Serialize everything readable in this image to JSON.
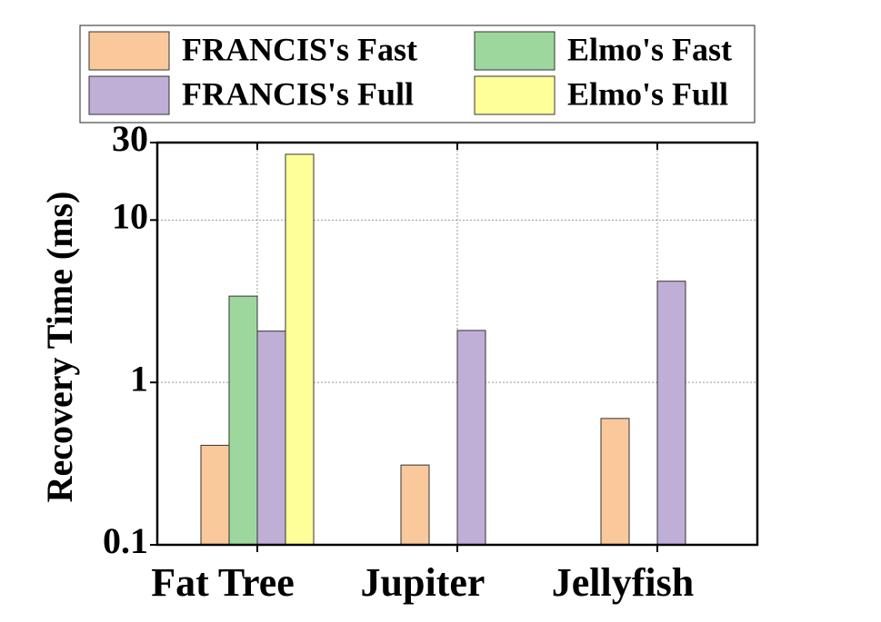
{
  "chart_data": {
    "type": "bar",
    "categories": [
      "Fat Tree",
      "Jupiter",
      "Jellyfish"
    ],
    "y_label": "Recovery Time (ms)",
    "log_scale": true,
    "grid": true,
    "legend_position": "top",
    "series": [
      {
        "name": "FRANCIS's Fast",
        "color": "#f9c89b",
        "values": [
          0.41,
          0.31,
          0.6
        ]
      },
      {
        "name": "Elmo's Fast",
        "color": "#9ed79e",
        "values": [
          3.4,
          null,
          null
        ]
      },
      {
        "name": "FRANCIS's Full",
        "color": "#bfaed6",
        "values": [
          2.07,
          2.09,
          4.2
        ]
      },
      {
        "name": "Elmo's Full",
        "color": "#ffff99",
        "values": [
          25.4,
          null,
          null
        ]
      }
    ],
    "ylim": [
      0.1,
      30
    ],
    "yticks": [
      0.1,
      1,
      10,
      30
    ]
  }
}
